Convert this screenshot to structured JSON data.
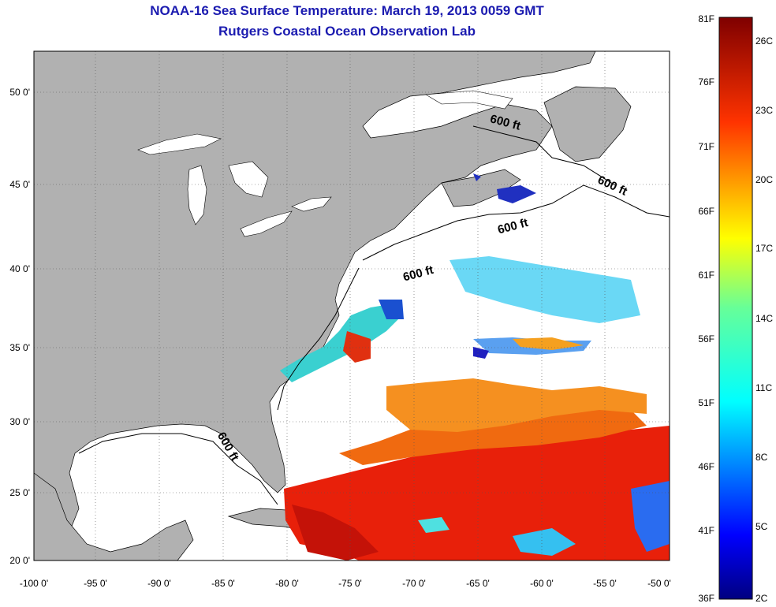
{
  "title": {
    "line1": "NOAA-16 Sea Surface Temperature:  March 19, 2013 0059 GMT",
    "line2": "Rutgers Coastal Ocean Observation Lab"
  },
  "map": {
    "lon_labels": [
      "-100 0'",
      "-95 0'",
      "-90 0'",
      "-85 0'",
      "-80 0'",
      "-75 0'",
      "-70 0'",
      "-65 0'",
      "-60 0'",
      "-55 0'",
      "-50 0'"
    ],
    "lat_labels": [
      "50 0'",
      "45 0'",
      "40 0'",
      "35 0'",
      "30 0'",
      "25 0'",
      "20 0'"
    ],
    "isobath_labels": [
      "600 ft",
      "600 ft",
      "600 ft",
      "600 ft",
      "600 ft"
    ],
    "colors": {
      "land": "#b1b1b1",
      "ocean": "#ffffff",
      "grid": "#555555"
    }
  },
  "colorbar": {
    "f_labels": [
      "81F",
      "76F",
      "71F",
      "66F",
      "61F",
      "56F",
      "51F",
      "46F",
      "41F",
      "36F"
    ],
    "c_labels": [
      "26C",
      "23C",
      "20C",
      "17C",
      "14C",
      "11C",
      "8C",
      "5C",
      "2C"
    ],
    "colormap": "jet"
  }
}
